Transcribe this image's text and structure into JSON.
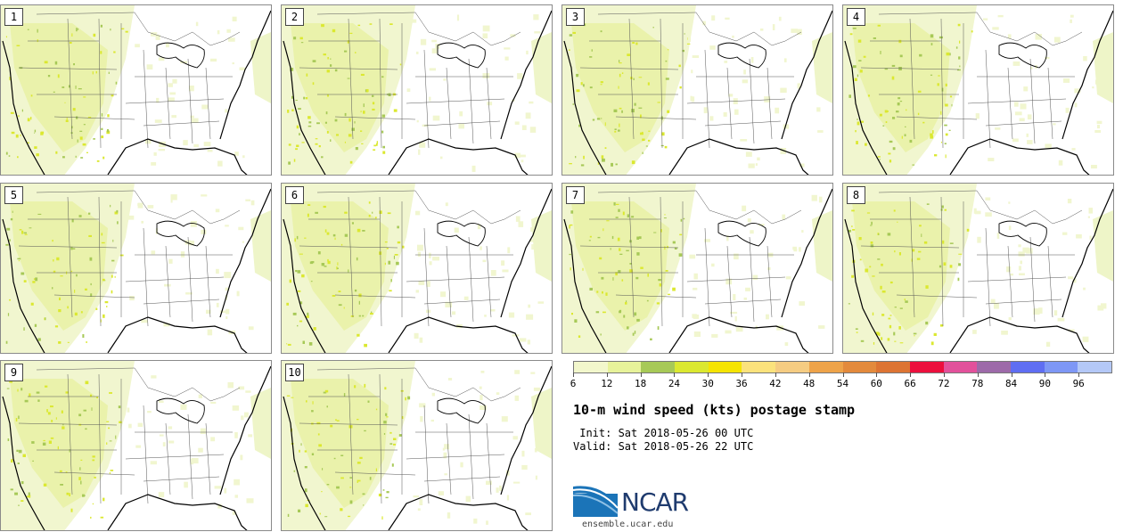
{
  "panels": [
    {
      "label": "1"
    },
    {
      "label": "2"
    },
    {
      "label": "3"
    },
    {
      "label": "4"
    },
    {
      "label": "5"
    },
    {
      "label": "6"
    },
    {
      "label": "7"
    },
    {
      "label": "8"
    },
    {
      "label": "9"
    },
    {
      "label": "10"
    }
  ],
  "colorbar": {
    "colors": [
      "#f2f7cc",
      "#e7f29a",
      "#a7c957",
      "#dbe830",
      "#f5e400",
      "#fbe27c",
      "#f5cc82",
      "#eea349",
      "#e38a3c",
      "#dd7433",
      "#ec0f3d",
      "#e2519b",
      "#9d6aa9",
      "#5f6ef2",
      "#7e97f5",
      "#b4c8f7"
    ],
    "ticks": [
      "6",
      "12",
      "18",
      "24",
      "30",
      "36",
      "42",
      "48",
      "54",
      "60",
      "66",
      "72",
      "78",
      "84",
      "90",
      "96"
    ]
  },
  "title": "10-m wind speed (kts) postage stamp",
  "init": " Init: Sat 2018-05-26 00 UTC",
  "valid": "Valid: Sat 2018-05-26 22 UTC",
  "logo_text": "NCAR",
  "site": "ensemble.ucar.edu"
}
